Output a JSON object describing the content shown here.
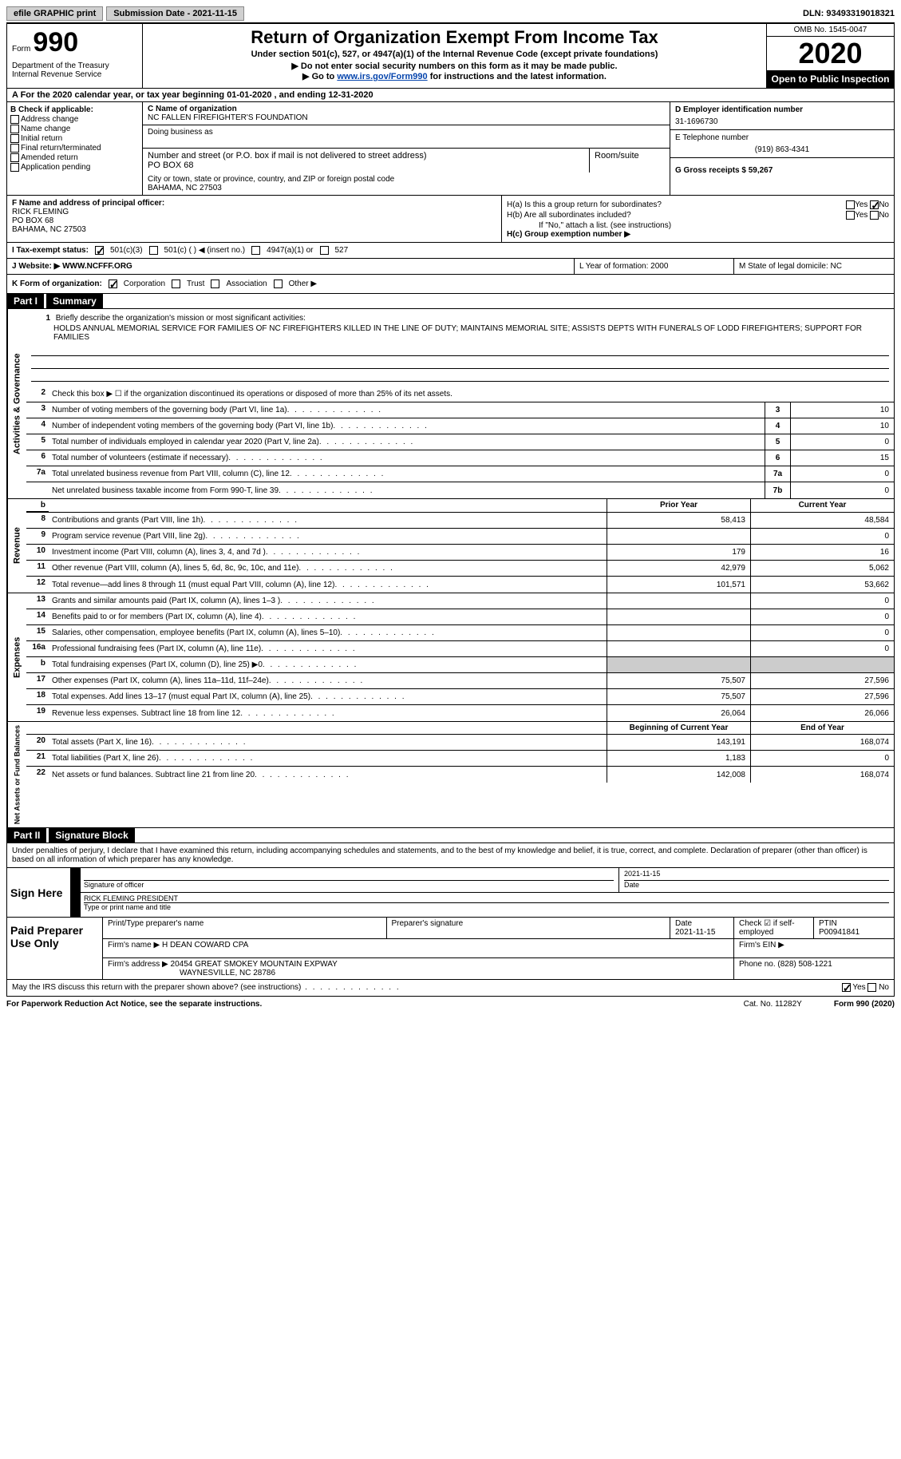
{
  "topbar": {
    "efile_btn": "efile GRAPHIC print",
    "submission_label": "Submission Date - 2021-11-15",
    "dln_label": "DLN: 93493319018321"
  },
  "header": {
    "form_prefix": "Form",
    "form_number": "990",
    "dept": "Department of the Treasury Internal Revenue Service",
    "title": "Return of Organization Exempt From Income Tax",
    "subtitle": "Under section 501(c), 527, or 4947(a)(1) of the Internal Revenue Code (except private foundations)",
    "instruct1": "▶ Do not enter social security numbers on this form as it may be made public.",
    "instruct2_prefix": "▶ Go to ",
    "instruct2_link": "www.irs.gov/Form990",
    "instruct2_suffix": " for instructions and the latest information.",
    "omb": "OMB No. 1545-0047",
    "year": "2020",
    "inspection": "Open to Public Inspection"
  },
  "period": "A For the 2020 calendar year, or tax year beginning 01-01-2020   , and ending 12-31-2020",
  "section_b": {
    "label": "B Check if applicable:",
    "opts": [
      "Address change",
      "Name change",
      "Initial return",
      "Final return/terminated",
      "Amended return",
      "Application pending"
    ]
  },
  "section_c": {
    "name_label": "C Name of organization",
    "name": "NC FALLEN FIREFIGHTER'S FOUNDATION",
    "dba_label": "Doing business as",
    "addr_label": "Number and street (or P.O. box if mail is not delivered to street address)",
    "room_label": "Room/suite",
    "addr": "PO BOX 68",
    "city_label": "City or town, state or province, country, and ZIP or foreign postal code",
    "city": "BAHAMA, NC  27503"
  },
  "section_d": {
    "ein_label": "D Employer identification number",
    "ein": "31-1696730",
    "phone_label": "E Telephone number",
    "phone": "(919) 863-4341",
    "gross_label": "G Gross receipts $ 59,267"
  },
  "section_f": {
    "label": "F  Name and address of principal officer:",
    "name": "RICK FLEMING",
    "addr1": "PO BOX 68",
    "addr2": "BAHAMA, NC  27503"
  },
  "section_h": {
    "a_label": "H(a)  Is this a group return for subordinates?",
    "b_label": "H(b)  Are all subordinates included?",
    "b_note": "If \"No,\" attach a list. (see instructions)",
    "c_label": "H(c)  Group exemption number ▶"
  },
  "row_i": {
    "label": "I   Tax-exempt status:",
    "opt1": "501(c)(3)",
    "opt2": "501(c) (  ) ◀ (insert no.)",
    "opt3": "4947(a)(1) or",
    "opt4": "527"
  },
  "row_j": {
    "label": "J   Website: ▶  WWW.NCFFF.ORG",
    "l_label": "L Year of formation: 2000",
    "m_label": "M State of legal domicile: NC"
  },
  "row_k": {
    "label": "K Form of organization:",
    "opts": [
      "Corporation",
      "Trust",
      "Association",
      "Other ▶"
    ]
  },
  "part1": {
    "hdr": "Part I",
    "title": "Summary",
    "line1_label": "Briefly describe the organization's mission or most significant activities:",
    "line1_text": "HOLDS ANNUAL MEMORIAL SERVICE FOR FAMILIES OF NC FIREFIGHTERS KILLED IN THE LINE OF DUTY; MAINTAINS MEMORIAL SITE; ASSISTS DEPTS WITH FUNERALS OF LODD FIREFIGHTERS; SUPPORT FOR FAMILIES",
    "line2": "Check this box ▶ ☐  if the organization discontinued its operations or disposed of more than 25% of its net assets.",
    "governance_rows": [
      {
        "num": "3",
        "text": "Number of voting members of the governing body (Part VI, line 1a)",
        "box": "3",
        "val": "10"
      },
      {
        "num": "4",
        "text": "Number of independent voting members of the governing body (Part VI, line 1b)",
        "box": "4",
        "val": "10"
      },
      {
        "num": "5",
        "text": "Total number of individuals employed in calendar year 2020 (Part V, line 2a)",
        "box": "5",
        "val": "0"
      },
      {
        "num": "6",
        "text": "Total number of volunteers (estimate if necessary)",
        "box": "6",
        "val": "15"
      },
      {
        "num": "7a",
        "text": "Total unrelated business revenue from Part VIII, column (C), line 12",
        "box": "7a",
        "val": "0"
      },
      {
        "num": "",
        "text": "Net unrelated business taxable income from Form 990-T, line 39",
        "box": "7b",
        "val": "0"
      }
    ],
    "prior_hdr": "Prior Year",
    "current_hdr": "Current Year",
    "begin_hdr": "Beginning of Current Year",
    "end_hdr": "End of Year",
    "revenue_label": "Revenue",
    "revenue_rows": [
      {
        "num": "8",
        "text": "Contributions and grants (Part VIII, line 1h)",
        "prior": "58,413",
        "curr": "48,584"
      },
      {
        "num": "9",
        "text": "Program service revenue (Part VIII, line 2g)",
        "prior": "",
        "curr": "0"
      },
      {
        "num": "10",
        "text": "Investment income (Part VIII, column (A), lines 3, 4, and 7d )",
        "prior": "179",
        "curr": "16"
      },
      {
        "num": "11",
        "text": "Other revenue (Part VIII, column (A), lines 5, 6d, 8c, 9c, 10c, and 11e)",
        "prior": "42,979",
        "curr": "5,062"
      },
      {
        "num": "12",
        "text": "Total revenue—add lines 8 through 11 (must equal Part VIII, column (A), line 12)",
        "prior": "101,571",
        "curr": "53,662"
      }
    ],
    "expenses_label": "Expenses",
    "expenses_rows": [
      {
        "num": "13",
        "text": "Grants and similar amounts paid (Part IX, column (A), lines 1–3 )",
        "prior": "",
        "curr": "0"
      },
      {
        "num": "14",
        "text": "Benefits paid to or for members (Part IX, column (A), line 4)",
        "prior": "",
        "curr": "0"
      },
      {
        "num": "15",
        "text": "Salaries, other compensation, employee benefits (Part IX, column (A), lines 5–10)",
        "prior": "",
        "curr": "0"
      },
      {
        "num": "16a",
        "text": "Professional fundraising fees (Part IX, column (A), line 11e)",
        "prior": "",
        "curr": "0"
      },
      {
        "num": "b",
        "text": "Total fundraising expenses (Part IX, column (D), line 25) ▶0",
        "prior": "SHADED",
        "curr": "SHADED"
      },
      {
        "num": "17",
        "text": "Other expenses (Part IX, column (A), lines 11a–11d, 11f–24e)",
        "prior": "75,507",
        "curr": "27,596"
      },
      {
        "num": "18",
        "text": "Total expenses. Add lines 13–17 (must equal Part IX, column (A), line 25)",
        "prior": "75,507",
        "curr": "27,596"
      },
      {
        "num": "19",
        "text": "Revenue less expenses. Subtract line 18 from line 12",
        "prior": "26,064",
        "curr": "26,066"
      }
    ],
    "netassets_label": "Net Assets or Fund Balances",
    "netassets_rows": [
      {
        "num": "20",
        "text": "Total assets (Part X, line 16)",
        "prior": "143,191",
        "curr": "168,074"
      },
      {
        "num": "21",
        "text": "Total liabilities (Part X, line 26)",
        "prior": "1,183",
        "curr": "0"
      },
      {
        "num": "22",
        "text": "Net assets or fund balances. Subtract line 21 from line 20",
        "prior": "142,008",
        "curr": "168,074"
      }
    ]
  },
  "part2": {
    "hdr": "Part II",
    "title": "Signature Block",
    "penalty": "Under penalties of perjury, I declare that I have examined this return, including accompanying schedules and statements, and to the best of my knowledge and belief, it is true, correct, and complete. Declaration of preparer (other than officer) is based on all information of which preparer has any knowledge.",
    "sign_here": "Sign Here",
    "sig_of_officer": "Signature of officer",
    "sig_date": "2021-11-15",
    "date_label": "Date",
    "officer_name": "RICK FLEMING PRESIDENT",
    "type_name": "Type or print name and title",
    "paid_prep": "Paid Preparer Use Only",
    "prep_name_label": "Print/Type preparer's name",
    "prep_sig_label": "Preparer's signature",
    "prep_date_label": "Date",
    "prep_date": "2021-11-15",
    "check_self": "Check ☑ if self-employed",
    "ptin_label": "PTIN",
    "ptin": "P00941841",
    "firm_name_label": "Firm's name   ▶",
    "firm_name": "H DEAN COWARD CPA",
    "firm_ein_label": "Firm's EIN ▶",
    "firm_addr_label": "Firm's address ▶",
    "firm_addr1": "20454 GREAT SMOKEY MOUNTAIN EXPWAY",
    "firm_addr2": "WAYNESVILLE, NC  28786",
    "firm_phone_label": "Phone no. (828) 508-1221",
    "may_irs": "May the IRS discuss this return with the preparer shown above? (see instructions)",
    "yes": "Yes",
    "no": "No"
  },
  "footer": {
    "paperwork": "For Paperwork Reduction Act Notice, see the separate instructions.",
    "cat": "Cat. No. 11282Y",
    "form": "Form 990 (2020)"
  }
}
